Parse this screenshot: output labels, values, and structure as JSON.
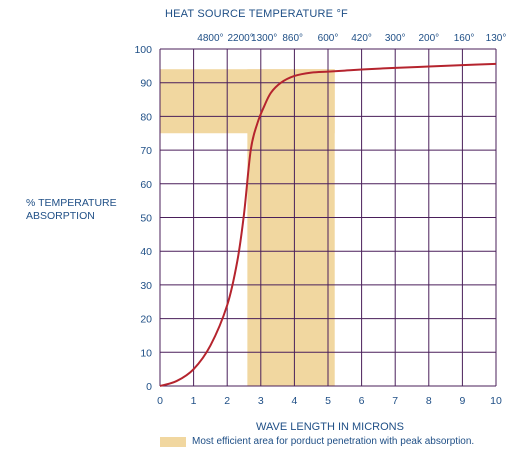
{
  "chart_data": {
    "type": "line",
    "title": "",
    "top_axis_label": "HEAT SOURCE TEMPERATURE °F",
    "xlabel": "WAVE LENGTH IN MICRONS",
    "ylabel_lines": [
      "% TEMPERATURE",
      "ABSORPTION"
    ],
    "xlim": [
      0,
      10
    ],
    "ylim": [
      0,
      100
    ],
    "x_ticks": [
      "0",
      "1",
      "2",
      "3",
      "4",
      "5",
      "6",
      "7",
      "8",
      "9",
      "10"
    ],
    "y_ticks": [
      "0",
      "10",
      "20",
      "30",
      "40",
      "50",
      "60",
      "70",
      "80",
      "90",
      "100"
    ],
    "top_ticks": [
      {
        "x": 1.5,
        "label": "4800°"
      },
      {
        "x": 2.4,
        "label": "2200°"
      },
      {
        "x": 3.1,
        "label": "1300°"
      },
      {
        "x": 3.95,
        "label": "860°"
      },
      {
        "x": 5.0,
        "label": "600°"
      },
      {
        "x": 6.0,
        "label": "420°"
      },
      {
        "x": 7.0,
        "label": "300°"
      },
      {
        "x": 8.0,
        "label": "200°"
      },
      {
        "x": 9.05,
        "label": "160°"
      },
      {
        "x": 10.0,
        "label": "130°"
      }
    ],
    "grid": true,
    "series": [
      {
        "color": "#b5242e",
        "x": [
          0,
          0.5,
          1,
          1.5,
          2,
          2.3,
          2.5,
          2.7,
          2.9,
          3.1,
          3.3,
          3.6,
          4,
          4.5,
          5,
          5.5,
          6,
          7,
          8,
          9,
          10
        ],
        "y": [
          0,
          1.5,
          5,
          12,
          24,
          37,
          51,
          70,
          78,
          83,
          87,
          90,
          92,
          93,
          93.3,
          93.6,
          93.9,
          94.4,
          94.8,
          95.2,
          95.6
        ]
      }
    ],
    "highlight_regions": [
      {
        "x0": 0,
        "x1": 5.2,
        "y0": 75,
        "y1": 94
      },
      {
        "x0": 2.6,
        "x1": 5.2,
        "y0": 0,
        "y1": 94
      }
    ],
    "highlight_color": "#f1d7a0",
    "legend_text": "Most efficient area for porduct penetration with peak absorption."
  }
}
